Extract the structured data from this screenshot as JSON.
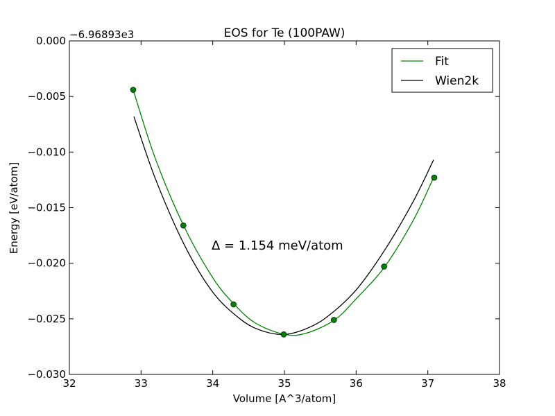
{
  "chart_data": {
    "type": "line",
    "title": "EOS for Te (100PAW)",
    "xlabel": "Volume [A^3/atom]",
    "ylabel": "Energy [eV/atom]",
    "offset_label": "−6.96893e3",
    "xlim": [
      32,
      38
    ],
    "ylim": [
      -0.03,
      0.0
    ],
    "xticks": [
      32,
      33,
      34,
      35,
      36,
      37,
      38
    ],
    "xtick_labels": [
      "32",
      "33",
      "34",
      "35",
      "36",
      "37",
      "38"
    ],
    "yticks": [
      0.0,
      -0.005,
      -0.01,
      -0.015,
      -0.02,
      -0.025,
      -0.03
    ],
    "ytick_labels": [
      "0.000",
      "−0.005",
      "−0.010",
      "−0.015",
      "−0.020",
      "−0.025",
      "−0.030"
    ],
    "grid": false,
    "legend_position": "top-right",
    "annotation": "Δ = 1.154 meV/atom",
    "series": [
      {
        "name": "Fit",
        "color": "#008000",
        "style": "line",
        "points": [
          [
            32.89,
            -0.0044
          ],
          [
            33.2,
            -0.0106
          ],
          [
            33.6,
            -0.0167
          ],
          [
            34.0,
            -0.0213
          ],
          [
            34.3,
            -0.0237
          ],
          [
            34.6,
            -0.0254
          ],
          [
            35.0,
            -0.0264
          ],
          [
            35.3,
            -0.0263
          ],
          [
            35.7,
            -0.0251
          ],
          [
            36.0,
            -0.0232
          ],
          [
            36.4,
            -0.0203
          ],
          [
            36.8,
            -0.0161
          ],
          [
            37.08,
            -0.0123
          ]
        ]
      },
      {
        "name": "Wien2k",
        "color": "#000000",
        "style": "line",
        "points": [
          [
            32.9,
            -0.0068
          ],
          [
            33.2,
            -0.0124
          ],
          [
            33.6,
            -0.0183
          ],
          [
            34.0,
            -0.0226
          ],
          [
            34.4,
            -0.0251
          ],
          [
            34.7,
            -0.0261
          ],
          [
            35.0,
            -0.0264
          ],
          [
            35.3,
            -0.0259
          ],
          [
            35.6,
            -0.0248
          ],
          [
            36.0,
            -0.0224
          ],
          [
            36.4,
            -0.0188
          ],
          [
            36.8,
            -0.0144
          ],
          [
            37.08,
            -0.0107
          ]
        ]
      },
      {
        "name": "",
        "color": "#008000",
        "style": "markers",
        "points": [
          [
            32.89,
            -0.0044
          ],
          [
            33.59,
            -0.0166
          ],
          [
            34.29,
            -0.0237
          ],
          [
            34.99,
            -0.0264
          ],
          [
            35.69,
            -0.0251
          ],
          [
            36.39,
            -0.0203
          ],
          [
            37.09,
            -0.0123
          ]
        ]
      }
    ]
  }
}
